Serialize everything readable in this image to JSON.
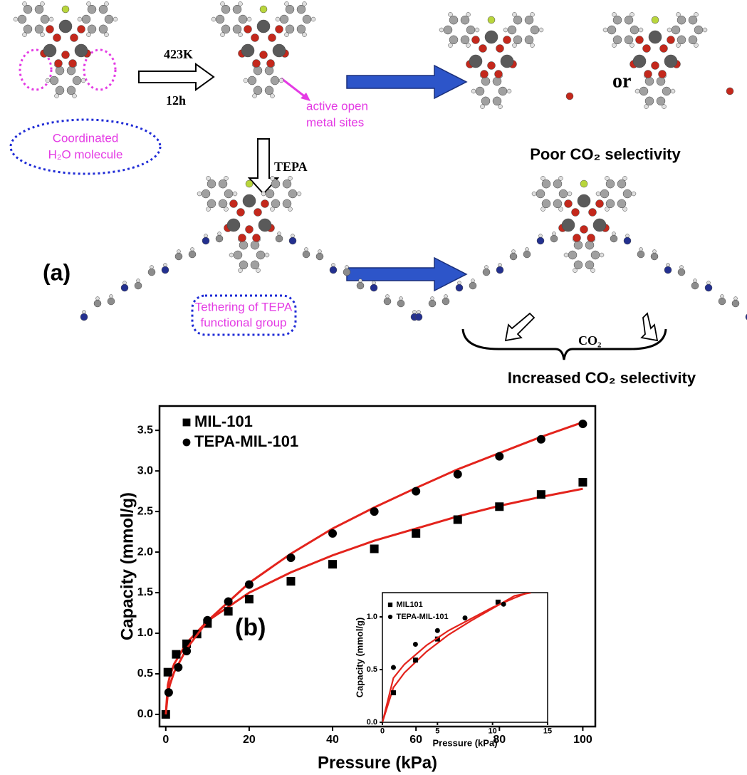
{
  "diagram": {
    "label": "(a)",
    "heat_temperature": "423K",
    "heat_time": "12h",
    "reagent": "TEPA",
    "open_sites": [
      "active open",
      "metal sites"
    ],
    "water": [
      "Coordinated",
      "H₂O molecule"
    ],
    "or": "or",
    "poor": "Poor CO₂ selectivity",
    "tether": [
      "Tethering of TEPA",
      "functional group"
    ],
    "co2": "CO₂",
    "increased": "Increased CO₂ selectivity"
  },
  "chart_data": [
    {
      "type": "scatter",
      "annotation": "(b)",
      "x_label": "Pressure (kPa)",
      "y_label": "Capacity (mmol/g)",
      "xlim": [
        -1.5,
        103
      ],
      "ylim": [
        -0.15,
        3.8
      ],
      "xticks": [
        0,
        20,
        40,
        60,
        80,
        100
      ],
      "yticks": [
        {
          "value": 0,
          "label": "0.0"
        },
        {
          "value": 0.5,
          "label": "0.5"
        },
        {
          "value": 1,
          "label": "1.0"
        },
        {
          "value": 1.5,
          "label": "1.5"
        },
        {
          "value": 2,
          "label": "2.0"
        },
        {
          "value": 2.5,
          "label": "2.5"
        },
        {
          "value": 3,
          "label": "3.0"
        },
        {
          "value": 3.5,
          "label": "3.5"
        }
      ],
      "series": [
        {
          "name": "MIL-101",
          "color": "#000000",
          "marker": "square",
          "x": [
            0,
            0.5,
            2.5,
            5,
            7.5,
            10,
            15,
            20,
            30,
            40,
            50,
            60,
            70,
            80,
            90,
            100
          ],
          "values": [
            0,
            0.52,
            0.74,
            0.87,
            0.99,
            1.12,
            1.27,
            1.42,
            1.64,
            1.85,
            2.04,
            2.23,
            2.4,
            2.56,
            2.71,
            2.86
          ],
          "fit": {
            "color": "#e3231c",
            "x": [
              0,
              0.5,
              1,
              2,
              5,
              10,
              20,
              30,
              40,
              50,
              60,
              70,
              80,
              90,
              100
            ],
            "values": [
              0,
              0.364,
              0.476,
              0.62,
              0.88,
              1.15,
              1.5,
              1.75,
              1.96,
              2.14,
              2.29,
              2.44,
              2.57,
              2.68,
              2.78
            ]
          }
        },
        {
          "name": "TEPA-MIL-101",
          "color": "#000000",
          "marker": "circle",
          "x": [
            0.7,
            3,
            5,
            10,
            15,
            20,
            30,
            40,
            50,
            60,
            70,
            80,
            90,
            100
          ],
          "values": [
            0.27,
            0.58,
            0.78,
            1.16,
            1.39,
            1.6,
            1.93,
            2.23,
            2.5,
            2.75,
            2.96,
            3.18,
            3.39,
            3.58
          ],
          "fit": {
            "color": "#e3231c",
            "x": [
              0,
              0.5,
              1,
              2,
              5,
              10,
              20,
              30,
              40,
              50,
              60,
              70,
              80,
              90,
              100
            ],
            "values": [
              0,
              0.26,
              0.367,
              0.52,
              0.81,
              1.15,
              1.62,
              1.98,
              2.29,
              2.55,
              2.79,
              3.02,
              3.22,
              3.42,
              3.6
            ]
          }
        }
      ]
    },
    {
      "type": "scatter",
      "x_label": "Pressure (kPa)",
      "y_label": "Capacity (mmol/g)",
      "xlim": [
        0,
        15
      ],
      "ylim": [
        0,
        1.23
      ],
      "xticks": [
        0,
        5,
        10,
        15
      ],
      "yticks": [
        {
          "value": 0,
          "label": "0.0"
        },
        {
          "value": 0.5,
          "label": "0.5"
        },
        {
          "value": 1,
          "label": "1.0"
        }
      ],
      "series": [
        {
          "name": "MIL101",
          "color": "#000000",
          "marker": "square",
          "x": [
            1,
            3,
            5,
            10.5
          ],
          "values": [
            0.28,
            0.59,
            0.79,
            1.14
          ],
          "fit": {
            "color": "#e3231c",
            "x": [
              0,
              1,
              2,
              4,
              6,
              8,
              10,
              12,
              13.5
            ],
            "values": [
              0,
              0.33,
              0.47,
              0.67,
              0.83,
              0.96,
              1.08,
              1.2,
              1.23
            ]
          }
        },
        {
          "name": "TEPA-MIL-101",
          "color": "#000000",
          "marker": "circle",
          "x": [
            1,
            3,
            5,
            7.5,
            11
          ],
          "values": [
            0.52,
            0.74,
            0.87,
            0.99,
            1.12
          ],
          "fit": {
            "color": "#e3231c",
            "x": [
              0,
              1,
              2,
              4,
              6,
              8,
              10,
              12,
              13.2
            ],
            "values": [
              0,
              0.42,
              0.55,
              0.73,
              0.87,
              0.98,
              1.09,
              1.18,
              1.23
            ]
          }
        }
      ]
    }
  ]
}
